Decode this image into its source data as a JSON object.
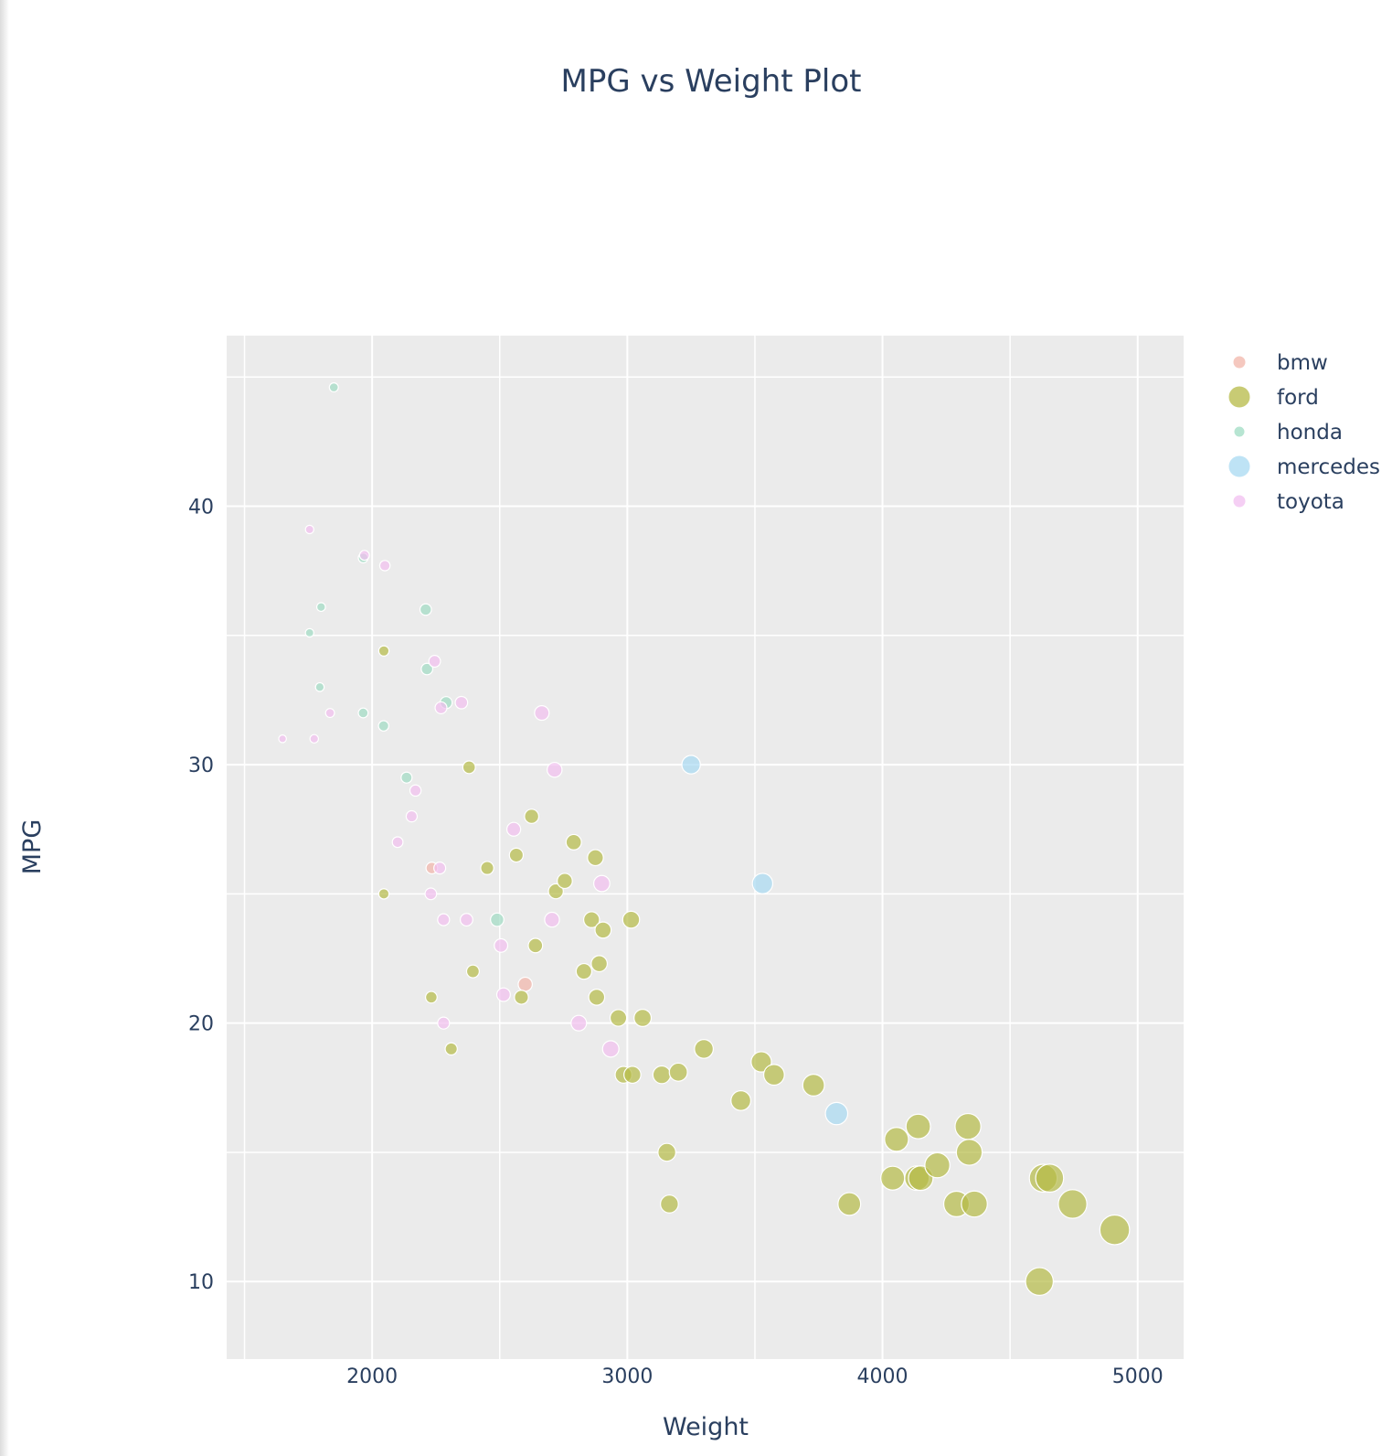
{
  "chart_data": {
    "type": "scatter",
    "title": "MPG vs Weight Plot",
    "xlabel": "Weight",
    "ylabel": "MPG",
    "xlim": [
      1430,
      5180
    ],
    "ylim": [
      7,
      46.6
    ],
    "xticks": [
      2000,
      3000,
      4000,
      5000
    ],
    "yticks": [
      10,
      20,
      30,
      40
    ],
    "grid": true,
    "legend_position": "top-right",
    "marker_size_encodes": "Weight",
    "series": [
      {
        "name": "bmw",
        "color": "#f2b5aa",
        "points": [
          [
            2234,
            26
          ],
          [
            2600,
            21.5
          ]
        ]
      },
      {
        "name": "ford",
        "color": "#b5ba46",
        "points": [
          [
            2046,
            34.4
          ],
          [
            2380,
            29.9
          ],
          [
            2046,
            25
          ],
          [
            2232,
            21
          ],
          [
            2310,
            19
          ],
          [
            2395,
            22
          ],
          [
            2451,
            26
          ],
          [
            2565,
            26.5
          ],
          [
            2625,
            28
          ],
          [
            2585,
            21
          ],
          [
            2640,
            23
          ],
          [
            2720,
            25.1
          ],
          [
            2755,
            25.5
          ],
          [
            2790,
            27
          ],
          [
            2830,
            22
          ],
          [
            2860,
            24
          ],
          [
            2875,
            26.4
          ],
          [
            2880,
            21
          ],
          [
            2890,
            22.3
          ],
          [
            2905,
            23.6
          ],
          [
            2965,
            20.2
          ],
          [
            2985,
            18
          ],
          [
            3015,
            24
          ],
          [
            3020,
            18
          ],
          [
            3060,
            20.2
          ],
          [
            3135,
            18
          ],
          [
            3155,
            15
          ],
          [
            3165,
            13
          ],
          [
            3200,
            18.1
          ],
          [
            3300,
            19
          ],
          [
            3445,
            17
          ],
          [
            3525,
            18.5
          ],
          [
            3575,
            18
          ],
          [
            3730,
            17.6
          ],
          [
            3870,
            13
          ],
          [
            4040,
            14
          ],
          [
            4055,
            15.5
          ],
          [
            4135,
            14
          ],
          [
            4140,
            16
          ],
          [
            4150,
            14
          ],
          [
            4215,
            14.5
          ],
          [
            4290,
            13
          ],
          [
            4335,
            16
          ],
          [
            4340,
            15
          ],
          [
            4360,
            13
          ],
          [
            4615,
            10
          ],
          [
            4630,
            14
          ],
          [
            4655,
            14
          ],
          [
            4745,
            13
          ],
          [
            4910,
            12
          ]
        ]
      },
      {
        "name": "honda",
        "color": "#9fdcc3",
        "points": [
          [
            1850,
            44.6
          ],
          [
            1965,
            38
          ],
          [
            1800,
            36.1
          ],
          [
            2210,
            36
          ],
          [
            1755,
            35.1
          ],
          [
            2215,
            33.7
          ],
          [
            1795,
            33
          ],
          [
            2290,
            32.4
          ],
          [
            1965,
            32
          ],
          [
            2045,
            31.5
          ],
          [
            2135,
            29.5
          ],
          [
            2490,
            24
          ]
        ]
      },
      {
        "name": "mercedes",
        "color": "#a8daf2",
        "points": [
          [
            3250,
            30
          ],
          [
            3530,
            25.4
          ],
          [
            3820,
            16.5
          ]
        ]
      },
      {
        "name": "toyota",
        "color": "#f2bff0",
        "points": [
          [
            1755,
            39.1
          ],
          [
            1970,
            38.1
          ],
          [
            2050,
            37.7
          ],
          [
            2245,
            34
          ],
          [
            2350,
            32.4
          ],
          [
            2270,
            32.2
          ],
          [
            1835,
            32
          ],
          [
            2665,
            32
          ],
          [
            1649,
            31
          ],
          [
            1773,
            31
          ],
          [
            2715,
            29.8
          ],
          [
            2170,
            29
          ],
          [
            2155,
            28
          ],
          [
            2100,
            27
          ],
          [
            2555,
            27.5
          ],
          [
            2265,
            26
          ],
          [
            2900,
            25.4
          ],
          [
            2230,
            25
          ],
          [
            2280,
            24
          ],
          [
            2370,
            24
          ],
          [
            2705,
            24
          ],
          [
            2505,
            23
          ],
          [
            2515,
            21.1
          ],
          [
            2280,
            20
          ],
          [
            2810,
            20
          ],
          [
            2935,
            19
          ]
        ]
      }
    ]
  }
}
